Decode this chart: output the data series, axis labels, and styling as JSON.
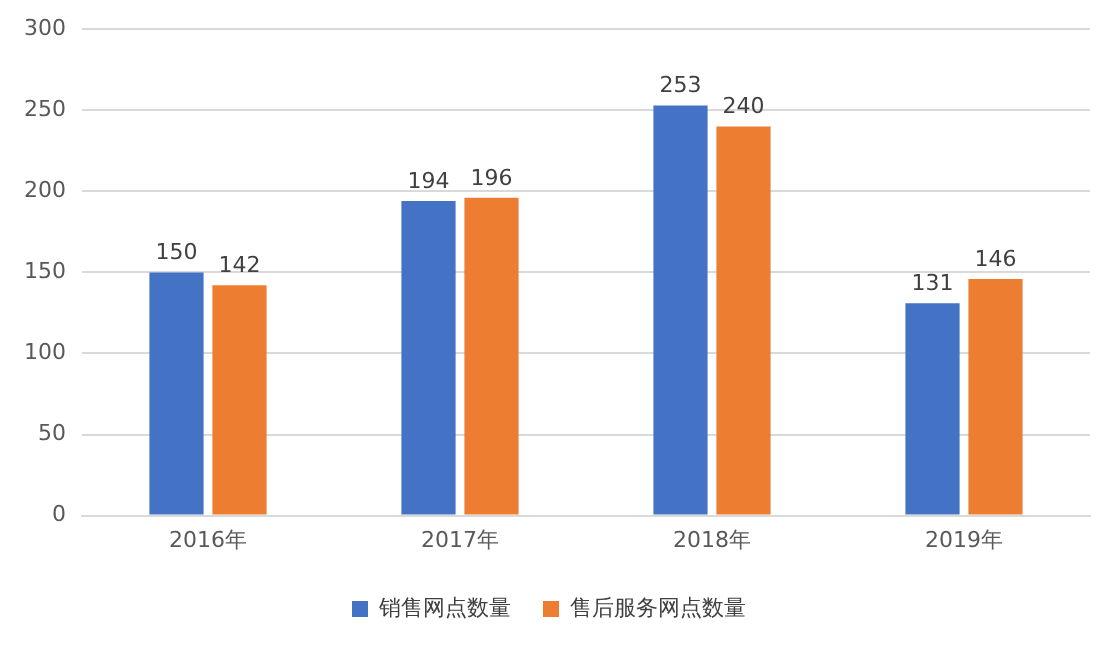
{
  "chart_data": {
    "type": "bar",
    "categories": [
      "2016年",
      "2017年",
      "2018年",
      "2019年"
    ],
    "series": [
      {
        "name": "销售网点数量",
        "color": "#4472c4",
        "values": [
          150,
          194,
          253,
          131
        ]
      },
      {
        "name": "售后服务网点数量",
        "color": "#ed7d31",
        "values": [
          142,
          196,
          240,
          146
        ]
      }
    ],
    "ylim": [
      0,
      300
    ],
    "yticks": [
      0,
      50,
      100,
      150,
      200,
      250,
      300
    ],
    "grid": "y",
    "legend": "bottom",
    "data_labels": true
  }
}
